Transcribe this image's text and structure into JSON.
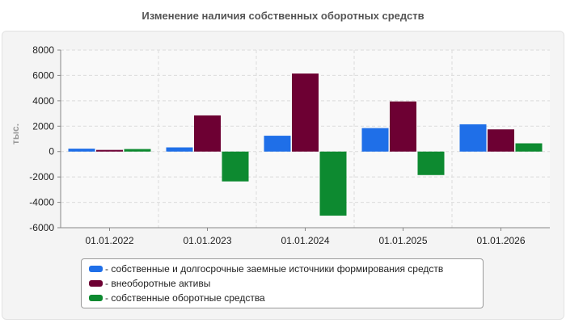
{
  "chart_data": {
    "type": "bar",
    "title": "Изменение наличия собственных оборотных средств",
    "ylabel": "тыс.",
    "xlabel": "",
    "categories": [
      "01.01.2022",
      "01.01.2023",
      "01.01.2024",
      "01.01.2025",
      "01.01.2026"
    ],
    "ylim": [
      -6000,
      8000
    ],
    "yticks": [
      8000,
      6000,
      4000,
      2000,
      0,
      -2000,
      -4000,
      -6000
    ],
    "grid": true,
    "legend_position": "bottom",
    "series": [
      {
        "name": "- собственные и долгосрочные заемные источники формирования средств",
        "color": "#1f6fe8",
        "values": [
          230,
          330,
          1250,
          1850,
          2150
        ]
      },
      {
        "name": "- внеоборотные активы",
        "color": "#6d0033",
        "values": [
          130,
          2850,
          6150,
          3950,
          1750
        ]
      },
      {
        "name": "- собственные оборотные средства",
        "color": "#0d8a30",
        "values": [
          200,
          -2350,
          -5050,
          -1850,
          650
        ]
      }
    ]
  }
}
